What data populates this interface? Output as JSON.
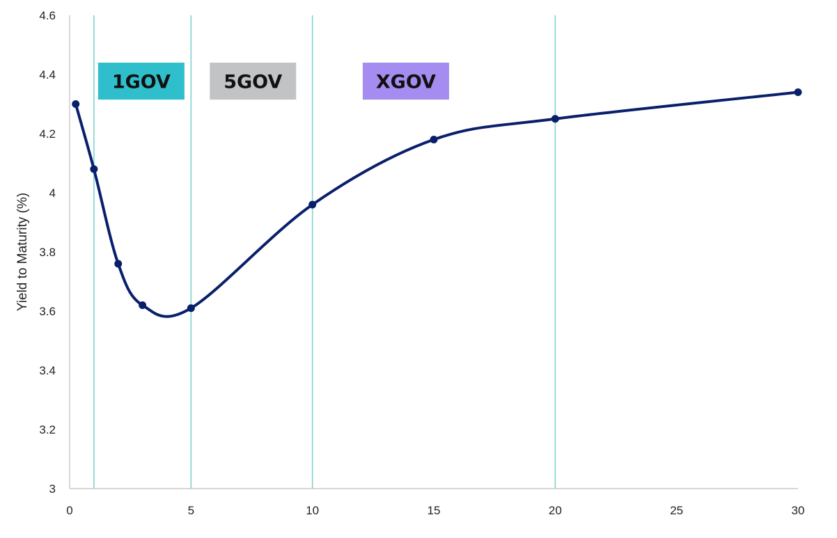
{
  "chart_data": {
    "type": "line",
    "title": "",
    "xlabel": "",
    "ylabel": "Yield to Maturity (%)",
    "xlim": [
      0,
      30
    ],
    "ylim": [
      3,
      4.6
    ],
    "x_ticks": [
      "0",
      "5",
      "10",
      "15",
      "20",
      "25",
      "30"
    ],
    "y_ticks": [
      "3",
      "3.2",
      "3.4",
      "3.6",
      "3.8",
      "4",
      "4.2",
      "4.4",
      "4.6"
    ],
    "grid": false,
    "series": [
      {
        "color": "#0a1f6b",
        "x": [
          0.25,
          1,
          2,
          3,
          5,
          10,
          15,
          20,
          30
        ],
        "y": [
          4.3,
          4.08,
          3.76,
          3.62,
          3.61,
          3.96,
          4.18,
          4.25,
          4.34
        ]
      }
    ],
    "reference_lines": {
      "color": "#7fd3cf",
      "x": [
        1,
        5,
        10,
        20
      ]
    },
    "band_labels": [
      {
        "text": "1GOV",
        "color": "#2fbfcc"
      },
      {
        "text": "5GOV",
        "color": "#c1c3c5"
      },
      {
        "text": "XGOV",
        "color": "#a58cf0"
      }
    ]
  }
}
